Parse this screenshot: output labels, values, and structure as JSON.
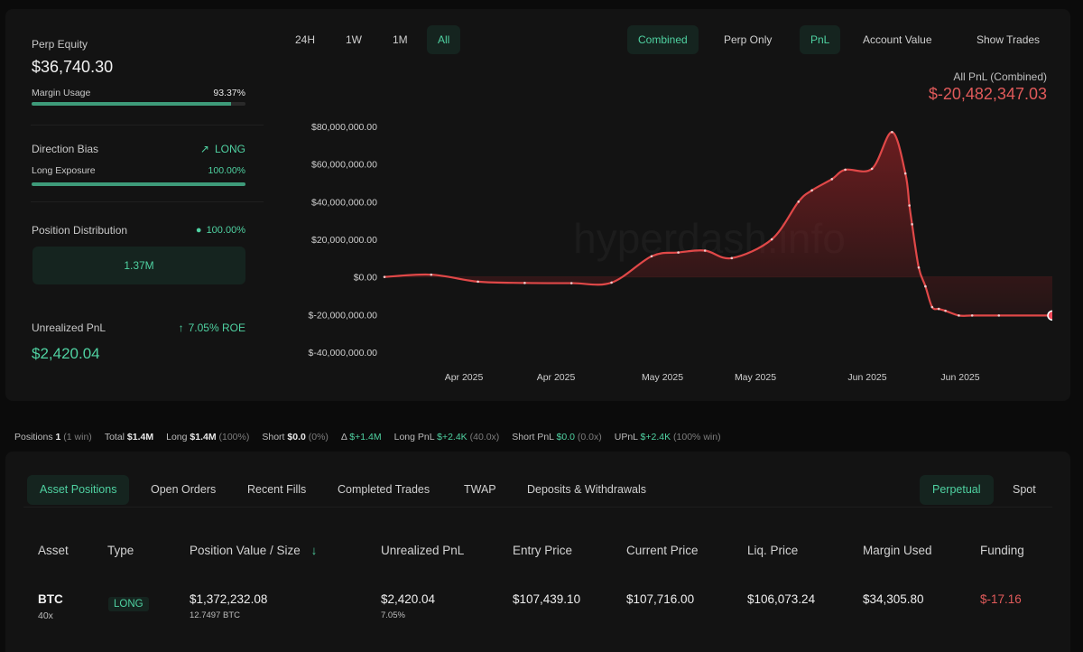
{
  "summary": {
    "perp_equity_label": "Perp Equity",
    "perp_equity_value": "$36,740.30",
    "margin_usage_label": "Margin Usage",
    "margin_usage_value": "93.37%",
    "margin_usage_fraction": 0.9337,
    "direction_bias_label": "Direction Bias",
    "direction_bias_value": "LONG",
    "long_exposure_label": "Long Exposure",
    "long_exposure_value": "100.00%",
    "long_exposure_fraction": 1.0,
    "position_distribution_label": "Position Distribution",
    "position_distribution_value": "100.00%",
    "position_distribution_amount": "1.37M",
    "unrealized_pnl_label": "Unrealized PnL",
    "unrealized_pnl_roe": "7.05% ROE",
    "unrealized_pnl_value": "$2,420.04"
  },
  "time_ranges": [
    "24H",
    "1W",
    "1M",
    "All"
  ],
  "active_time_range": "All",
  "views": {
    "combined": "Combined",
    "perp_only": "Perp Only",
    "pnl": "PnL",
    "account_value": "Account Value",
    "show_trades": "Show Trades"
  },
  "pnl_header": {
    "label": "All PnL (Combined)",
    "value": "$-20,482,347.03"
  },
  "chart_data": {
    "type": "area",
    "title": "",
    "xlabel": "",
    "ylabel": "",
    "ylim": [
      -40000000,
      80000000
    ],
    "y_ticks": [
      80000000,
      60000000,
      40000000,
      20000000,
      0,
      -20000000,
      -40000000
    ],
    "y_tick_labels": [
      "$80,000,000.00",
      "$60,000,000.00",
      "$40,000,000.00",
      "$20,000,000.00",
      "$0.00",
      "$-20,000,000.00",
      "$-40,000,000.00"
    ],
    "x_tick_labels": [
      "Apr 2025",
      "Apr 2025",
      "May 2025",
      "May 2025",
      "Jun 2025",
      "Jun 2025"
    ],
    "watermark": "hyperdash.info",
    "grid": false,
    "colors": {
      "line": "#e04848",
      "fill": "#7a1f22",
      "marker": "#ef4a5a"
    },
    "series": [
      {
        "x": [
          0,
          0.07,
          0.14,
          0.21,
          0.28,
          0.34,
          0.4,
          0.44,
          0.48,
          0.52,
          0.58,
          0.62,
          0.64,
          0.67,
          0.69,
          0.73,
          0.76,
          0.78,
          0.786,
          0.79,
          0.8,
          0.81,
          0.82,
          0.83,
          0.84,
          0.86,
          0.88,
          0.92,
          1.0
        ],
        "values": [
          0,
          1200000,
          -2500000,
          -3200000,
          -3300000,
          -3000000,
          11000000,
          13000000,
          14000000,
          10000000,
          20000000,
          40000000,
          46000000,
          52000000,
          57000000,
          57500000,
          77000000,
          55000000,
          38000000,
          28000000,
          5000000,
          -5000000,
          -16000000,
          -17000000,
          -18000000,
          -20500000,
          -20500000,
          -20500000,
          -20482347
        ]
      }
    ]
  },
  "stats": {
    "positions_label": "Positions",
    "positions_value": "1",
    "positions_win": "(1 win)",
    "total_label": "Total",
    "total_value": "$1.4M",
    "long_label": "Long",
    "long_value": "$1.4M",
    "long_pct": "(100%)",
    "short_label": "Short",
    "short_value": "$0.0",
    "short_pct": "(0%)",
    "delta_label": "Δ",
    "delta_value": "$+1.4M",
    "long_pnl_label": "Long PnL",
    "long_pnl_value": "$+2.4K",
    "long_pnl_x": "(40.0x)",
    "short_pnl_label": "Short PnL",
    "short_pnl_value": "$0.0",
    "short_pnl_x": "(0.0x)",
    "upnl_label": "UPnL",
    "upnl_value": "$+2.4K",
    "upnl_win": "(100% win)"
  },
  "tabs": [
    "Asset Positions",
    "Open Orders",
    "Recent Fills",
    "Completed Trades",
    "TWAP",
    "Deposits & Withdrawals"
  ],
  "market_tabs": [
    "Perpetual",
    "Spot"
  ],
  "table": {
    "headers": [
      "Asset",
      "Type",
      "Position Value / Size",
      "Unrealized PnL",
      "Entry Price",
      "Current Price",
      "Liq. Price",
      "Margin Used",
      "Funding"
    ],
    "rows": [
      {
        "asset": "BTC",
        "leverage": "40x",
        "type": "LONG",
        "position_value": "$1,372,232.08",
        "position_size": "12.7497 BTC",
        "unrealized_pnl": "$2,420.04",
        "unrealized_pnl_pct": "7.05%",
        "entry_price": "$107,439.10",
        "current_price": "$107,716.00",
        "liq_price": "$106,073.24",
        "margin_used": "$34,305.80",
        "funding": "$-17.16"
      }
    ]
  }
}
